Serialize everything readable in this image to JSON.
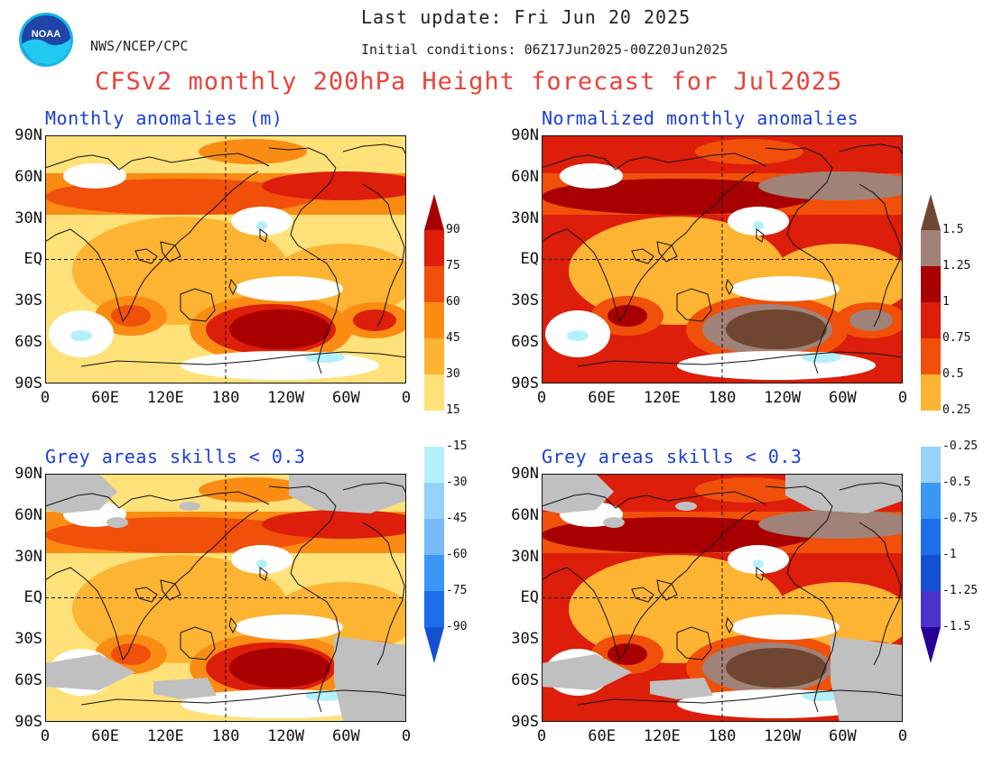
{
  "header": {
    "last_update": "Last update: Fri Jun 20 2025",
    "initial_conditions": "Initial conditions: 06Z17Jun2025-00Z20Jun2025",
    "agency": "NWS/NCEP/CPC",
    "title": "CFSv2 monthly 200hPa Height forecast for Jul2025",
    "logo_text": "NOAA"
  },
  "panels": [
    {
      "id": "anomalies",
      "title": "Monthly anomalies (m)",
      "grey_skill_mask": false,
      "color_scale": "meters"
    },
    {
      "id": "normalized",
      "title": "Normalized monthly anomalies",
      "grey_skill_mask": false,
      "color_scale": "normalized"
    },
    {
      "id": "anomalies-masked",
      "title": "Grey areas skills < 0.3",
      "grey_skill_mask": true,
      "color_scale": "meters"
    },
    {
      "id": "normalized-masked",
      "title": "Grey areas skills < 0.3",
      "grey_skill_mask": true,
      "color_scale": "normalized"
    }
  ],
  "axes": {
    "lat_labels": [
      "90N",
      "60N",
      "30N",
      "EQ",
      "30S",
      "60S",
      "90S"
    ],
    "lon_labels": [
      "0",
      "60E",
      "120E",
      "180",
      "120W",
      "60W",
      "0"
    ]
  },
  "colorbar_meters": {
    "labels": [
      "90",
      "75",
      "60",
      "45",
      "30",
      "15",
      "-15",
      "-30",
      "-45",
      "-60",
      "-75",
      "-90"
    ],
    "colors": [
      "#a80000",
      "#dc1e0a",
      "#f0500a",
      "#fa8c14",
      "#fcb432",
      "#ffe17a",
      "#ffffff",
      "#b4f0fa",
      "#96d2fa",
      "#78b9fa",
      "#3c96f5",
      "#1e6eeb",
      "#1450d2"
    ]
  },
  "colorbar_normalized": {
    "labels": [
      "1.5",
      "1.25",
      "1",
      "0.75",
      "0.5",
      "0.25",
      "-0.25",
      "-0.5",
      "-0.75",
      "-1",
      "-1.25",
      "-1.5"
    ],
    "colors": [
      "#6e4632",
      "#a08278",
      "#a80000",
      "#dc1e0a",
      "#f0500a",
      "#fcb432",
      "#ffffff",
      "#96d2fa",
      "#3c96f5",
      "#1e6eeb",
      "#1450d2",
      "#4b32c8",
      "#240096"
    ]
  }
}
